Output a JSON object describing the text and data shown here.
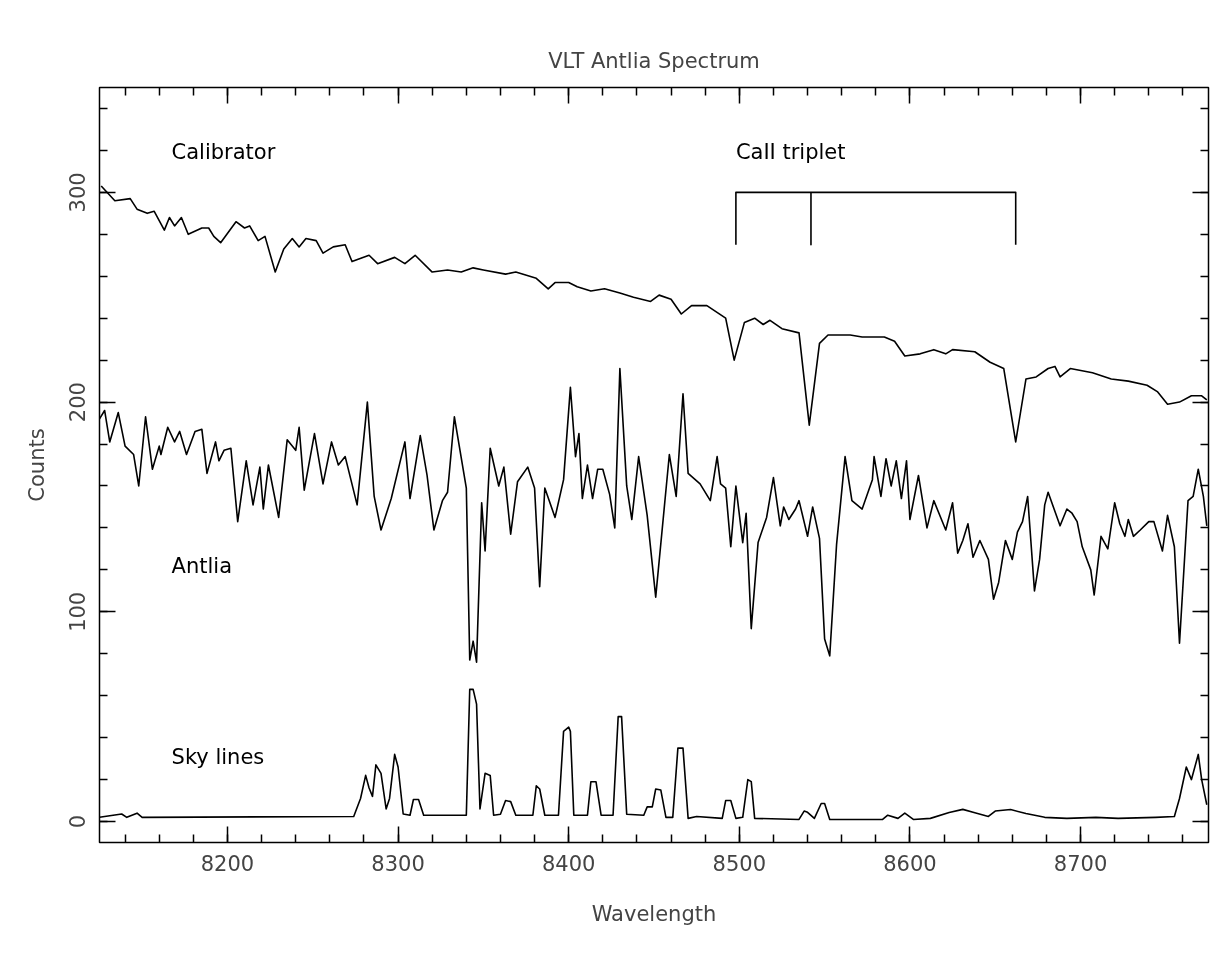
{
  "chart_data": {
    "type": "line",
    "title": "VLT Antlia Spectrum",
    "xlabel": "Wavelength",
    "ylabel": "Counts",
    "xlim": [
      8125,
      8775
    ],
    "ylim": [
      -10,
      350
    ],
    "xticks": [
      8200,
      8300,
      8400,
      8500,
      8600,
      8700
    ],
    "yticks": [
      0,
      100,
      200,
      300
    ],
    "grid": false,
    "line_style": "solid",
    "annotations": [
      "CaII triplet"
    ],
    "series": [
      {
        "name": "Calibrator",
        "color": "#000000",
        "x": [
          8126,
          8134,
          8143,
          8147,
          8153,
          8157,
          8163,
          8166,
          8169,
          8173,
          8177,
          8185,
          8189,
          8192,
          8196,
          8205,
          8210,
          8213,
          8218,
          8222,
          8228,
          8233,
          8238,
          8242,
          8246,
          8252,
          8256,
          8262,
          8269,
          8273,
          8283,
          8288,
          8298,
          8304,
          8310,
          8320,
          8329,
          8337,
          8344,
          8350,
          8363,
          8369,
          8381,
          8388,
          8392,
          8400,
          8405,
          8413,
          8421,
          8430,
          8438,
          8448,
          8453,
          8460,
          8466,
          8472,
          8481,
          8492,
          8497,
          8503,
          8509,
          8514,
          8518,
          8525,
          8535,
          8541,
          8547,
          8552,
          8565,
          8572,
          8585,
          8591,
          8597,
          8606,
          8614,
          8621,
          8625,
          8638,
          8647,
          8655,
          8662,
          8668,
          8674,
          8681,
          8685,
          8688,
          8694,
          8707,
          8718,
          8728,
          8739,
          8745,
          8751,
          8758,
          8765,
          8771,
          8774
        ],
        "values": [
          303,
          296,
          297,
          292,
          290,
          291,
          282,
          288,
          284,
          288,
          280,
          283,
          283,
          279,
          276,
          286,
          283,
          284,
          277,
          279,
          262,
          273,
          278,
          274,
          278,
          277,
          271,
          274,
          275,
          267,
          270,
          266,
          269,
          266,
          270,
          262,
          263,
          262,
          264,
          263,
          261,
          262,
          259,
          254,
          257,
          257,
          255,
          253,
          254,
          252,
          250,
          248,
          251,
          249,
          242,
          246,
          246,
          240,
          220,
          238,
          240,
          237,
          239,
          235,
          233,
          189,
          228,
          232,
          232,
          231,
          231,
          229,
          222,
          223,
          225,
          223,
          225,
          224,
          219,
          216,
          181,
          211,
          212,
          216,
          217,
          212,
          216,
          214,
          211,
          210,
          208,
          205,
          199,
          200,
          203,
          203,
          201
        ]
      },
      {
        "name": "Antlia",
        "color": "#000000",
        "x": [
          8125,
          8128,
          8131,
          8136,
          8140,
          8145,
          8148,
          8152,
          8156,
          8160,
          8161,
          8165,
          8169,
          8172,
          8176,
          8181,
          8185,
          8188,
          8193,
          8195,
          8198,
          8202,
          8206,
          8211,
          8215,
          8219,
          8221,
          8224,
          8230,
          8235,
          8240,
          8242,
          8245,
          8251,
          8256,
          8261,
          8265,
          8269,
          8276,
          8282,
          8286,
          8290,
          8296,
          8304,
          8307,
          8313,
          8317,
          8321,
          8326,
          8329,
          8333,
          8340,
          8342,
          8344,
          8346,
          8349,
          8351,
          8354,
          8359,
          8362,
          8366,
          8370,
          8376,
          8380,
          8383,
          8386,
          8392,
          8397,
          8401,
          8404,
          8406,
          8408,
          8411,
          8414,
          8417,
          8420,
          8424,
          8427,
          8430,
          8434,
          8437,
          8441,
          8446,
          8451,
          8459,
          8463,
          8467,
          8470,
          8477,
          8483,
          8487,
          8489,
          8492,
          8495,
          8498,
          8502,
          8504,
          8507,
          8511,
          8516,
          8520,
          8524,
          8526,
          8529,
          8533,
          8535,
          8540,
          8543,
          8547,
          8550,
          8553,
          8557,
          8562,
          8566,
          8572,
          8578,
          8579,
          8583,
          8586,
          8589,
          8592,
          8595,
          8598,
          8600,
          8605,
          8610,
          8614,
          8621,
          8625,
          8628,
          8631,
          8634,
          8637,
          8641,
          8646,
          8649,
          8652,
          8656,
          8660,
          8663,
          8666,
          8669,
          8673,
          8676,
          8679,
          8681,
          8688,
          8692,
          8695,
          8698,
          8701,
          8706,
          8708,
          8712,
          8716,
          8720,
          8723,
          8726,
          8728,
          8731,
          8735,
          8740,
          8743,
          8748,
          8751,
          8755,
          8758,
          8763,
          8766,
          8769,
          8772,
          8774
        ],
        "values": [
          192,
          196,
          181,
          195,
          179,
          175,
          160,
          193,
          168,
          179,
          175,
          188,
          181,
          186,
          175,
          186,
          187,
          166,
          181,
          172,
          177,
          178,
          143,
          172,
          151,
          169,
          149,
          170,
          145,
          182,
          177,
          188,
          158,
          185,
          161,
          181,
          170,
          174,
          151,
          200,
          155,
          139,
          154,
          181,
          154,
          184,
          165,
          139,
          153,
          157,
          193,
          159,
          77,
          86,
          76,
          152,
          129,
          178,
          160,
          169,
          137,
          162,
          169,
          159,
          112,
          159,
          145,
          163,
          207,
          174,
          185,
          154,
          170,
          154,
          168,
          168,
          156,
          140,
          216,
          160,
          144,
          174,
          146,
          107,
          175,
          155,
          204,
          166,
          161,
          153,
          174,
          161,
          159,
          131,
          160,
          133,
          147,
          92,
          133,
          145,
          164,
          141,
          150,
          144,
          149,
          153,
          136,
          150,
          135,
          87,
          79,
          132,
          174,
          153,
          149,
          163,
          174,
          155,
          173,
          160,
          172,
          154,
          172,
          144,
          165,
          140,
          153,
          139,
          152,
          128,
          134,
          142,
          126,
          134,
          125,
          106,
          114,
          134,
          125,
          138,
          143,
          155,
          110,
          125,
          151,
          157,
          141,
          149,
          147,
          143,
          131,
          120,
          108,
          136,
          130,
          152,
          142,
          136,
          144,
          136,
          139,
          143,
          143,
          129,
          146,
          131,
          85,
          153,
          155,
          168,
          155,
          141
        ]
      },
      {
        "name": "Sky lines",
        "color": "#000000",
        "x": [
          8125,
          8138,
          8141,
          8147,
          8150,
          8274,
          8278,
          8281,
          8283,
          8285,
          8287,
          8290,
          8293,
          8295,
          8298,
          8300,
          8303,
          8307,
          8309,
          8312,
          8315,
          8340,
          8342,
          8344,
          8346,
          8348,
          8351,
          8354,
          8356,
          8360,
          8363,
          8366,
          8369,
          8379,
          8381,
          8383,
          8386,
          8394,
          8397,
          8400,
          8401,
          8403,
          8411,
          8413,
          8416,
          8419,
          8426,
          8429,
          8431,
          8434,
          8444,
          8446,
          8449,
          8451,
          8454,
          8457,
          8461,
          8464,
          8467,
          8470,
          8475,
          8490,
          8492,
          8495,
          8498,
          8502,
          8505,
          8507,
          8509,
          8535,
          8538,
          8540,
          8544,
          8548,
          8550,
          8553,
          8584,
          8587,
          8593,
          8597,
          8602,
          8612,
          8623,
          8631,
          8637,
          8646,
          8650,
          8659,
          8668,
          8679,
          8692,
          8709,
          8722,
          8744,
          8755,
          8758,
          8762,
          8765,
          8769,
          8771,
          8774
        ],
        "values": [
          2,
          3.6,
          2,
          4,
          2,
          2.4,
          11,
          22,
          16,
          12,
          27,
          23,
          6,
          11,
          32,
          26,
          3.6,
          3,
          10.5,
          10.5,
          3,
          3,
          63,
          63,
          56,
          6,
          23,
          22,
          3,
          3.5,
          10,
          9.5,
          3,
          3,
          17,
          15.5,
          3,
          3,
          43,
          45,
          43,
          3,
          3,
          19,
          19,
          3,
          3,
          50,
          50,
          3.5,
          3,
          7,
          7,
          15.5,
          15,
          2,
          2,
          35,
          35,
          1.5,
          2.4,
          1.5,
          10,
          10,
          1.5,
          2,
          20,
          19,
          1.5,
          1,
          5,
          4.4,
          1.5,
          8.6,
          8.6,
          1,
          1,
          3,
          1.5,
          4,
          1,
          1.5,
          4.3,
          5.8,
          4.4,
          2.4,
          5,
          5.7,
          3.8,
          2,
          1.5,
          2,
          1.5,
          2,
          2.4,
          11,
          26,
          20,
          32,
          20,
          8
        ]
      },
      {
        "color": "#000000",
        "x": [
          8498,
          8498,
          8542,
          8542,
          8542,
          8662,
          8662
        ],
        "values": [
          275,
          300,
          300,
          275,
          300,
          300,
          275
        ]
      }
    ]
  }
}
